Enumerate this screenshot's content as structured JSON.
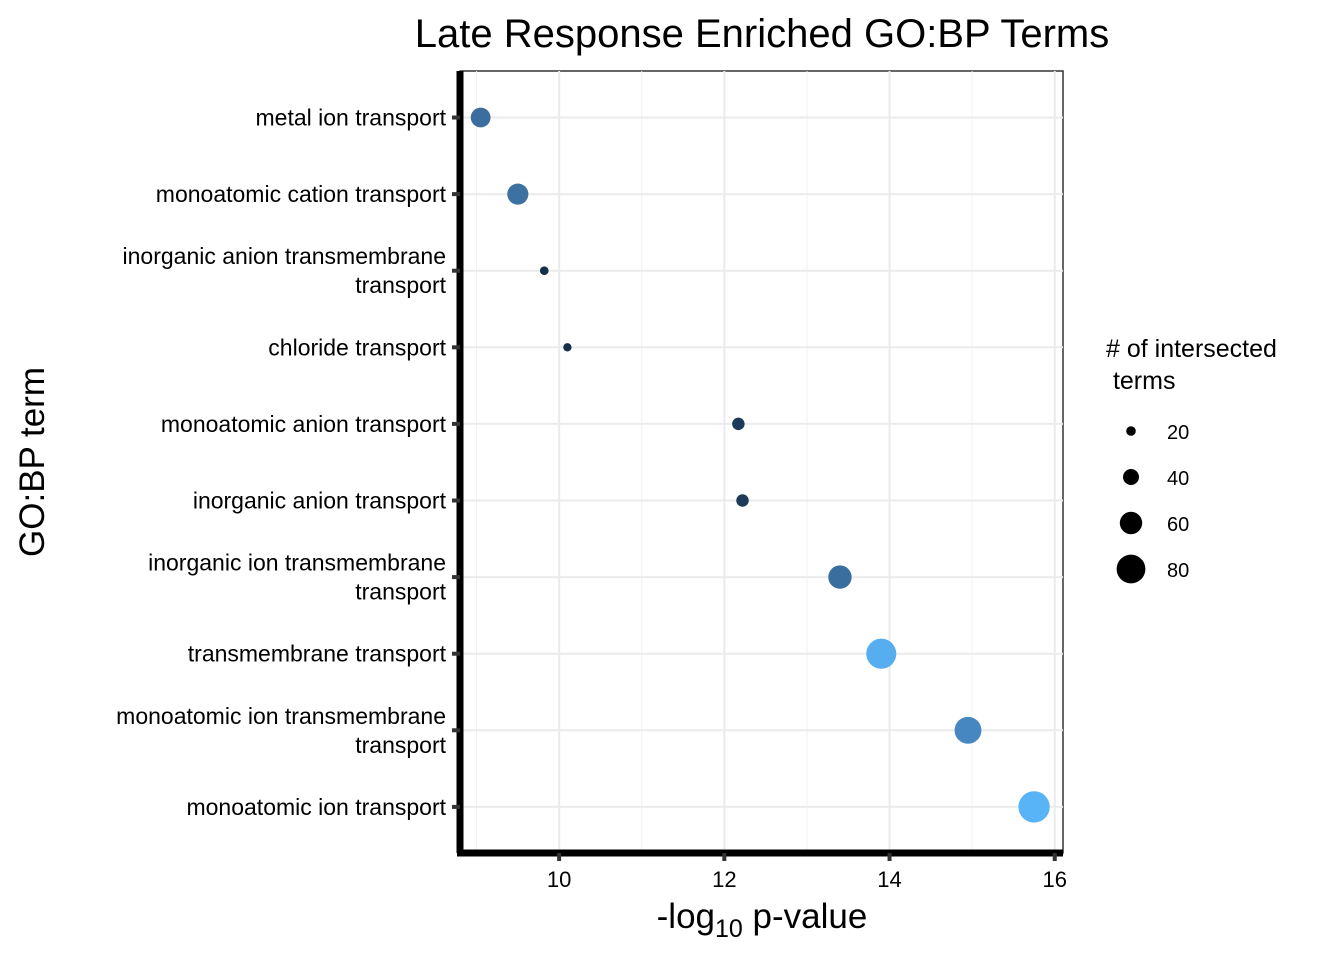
{
  "chart_data": {
    "type": "scatter",
    "title": "Late Response Enriched GO:BP Terms",
    "xlabel": {
      "prefix": "-log",
      "subscript": "10",
      "suffix": " p-value"
    },
    "ylabel": "GO:BP term",
    "xlim": [
      8.8,
      16.1
    ],
    "xticks": [
      10,
      12,
      14,
      16
    ],
    "grid": true,
    "legend": {
      "title_lines": [
        "# of intersected",
        " terms"
      ],
      "placement": "right",
      "entries": [
        {
          "label": "20",
          "value": 20
        },
        {
          "label": "40",
          "value": 40
        },
        {
          "label": "60",
          "value": 60
        },
        {
          "label": "80",
          "value": 80
        }
      ]
    },
    "terms": [
      {
        "label_lines": [
          "metal ion transport"
        ],
        "x": 9.05,
        "size": 52,
        "color": "#3b6e9e"
      },
      {
        "label_lines": [
          "monoatomic cation transport"
        ],
        "x": 9.5,
        "size": 56,
        "color": "#3c71a2"
      },
      {
        "label_lines": [
          "inorganic anion transmembrane",
          "transport"
        ],
        "x": 9.82,
        "size": 17,
        "color": "#17304a"
      },
      {
        "label_lines": [
          "chloride transport"
        ],
        "x": 10.1,
        "size": 16,
        "color": "#16304a"
      },
      {
        "label_lines": [
          "monoatomic anion transport"
        ],
        "x": 12.17,
        "size": 29,
        "color": "#1d3a58"
      },
      {
        "label_lines": [
          "inorganic anion transport"
        ],
        "x": 12.22,
        "size": 29,
        "color": "#1d3a58"
      },
      {
        "label_lines": [
          "inorganic ion transmembrane",
          "transport"
        ],
        "x": 13.4,
        "size": 63,
        "color": "#3a6e9f"
      },
      {
        "label_lines": [
          "transmembrane transport"
        ],
        "x": 13.9,
        "size": 84,
        "color": "#56aef0"
      },
      {
        "label_lines": [
          "monoatomic ion transmembrane",
          "transport"
        ],
        "x": 14.95,
        "size": 74,
        "color": "#4687c2"
      },
      {
        "label_lines": [
          "monoatomic ion transport"
        ],
        "x": 15.75,
        "size": 88,
        "color": "#59b3f7"
      }
    ]
  }
}
